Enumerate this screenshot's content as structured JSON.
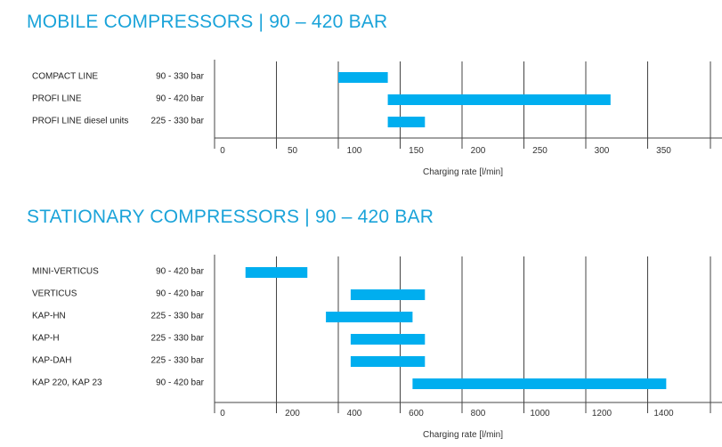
{
  "accent_color": "#1aa3d9",
  "bar_color": "#00aeef",
  "grid_color": "#444444",
  "chart_data": [
    {
      "type": "bar",
      "orientation": "horizontal-range",
      "title": "MOBILE COMPRESSORS | 90 – 420 BAR",
      "xlabel": "Charging rate [l/min]",
      "xlim": [
        0,
        400
      ],
      "ticks": [
        0,
        50,
        100,
        150,
        200,
        250,
        300,
        350
      ],
      "tick_labels": [
        "0",
        "50",
        "100",
        "150",
        "200",
        "250",
        "300",
        "350"
      ],
      "grid": true,
      "rows": [
        {
          "label": "COMPACT LINE",
          "pressure": "90 - 330 bar",
          "start": 100,
          "end": 140
        },
        {
          "label": "PROFI LINE",
          "pressure": "90 - 420 bar",
          "start": 140,
          "end": 320
        },
        {
          "label": "PROFI LINE diesel units",
          "pressure": "225 - 330 bar",
          "start": 140,
          "end": 170
        }
      ]
    },
    {
      "type": "bar",
      "orientation": "horizontal-range",
      "title": "STATIONARY COMPRESSORS | 90 – 420 BAR",
      "xlabel": "Charging rate [l/min]",
      "xlim": [
        0,
        1600
      ],
      "ticks": [
        0,
        200,
        400,
        600,
        800,
        1000,
        1200,
        1400
      ],
      "tick_labels": [
        "0",
        "200",
        "400",
        "600",
        "800",
        "1000",
        "1200",
        "1400"
      ],
      "grid": true,
      "rows": [
        {
          "label": "MINI-VERTICUS",
          "pressure": "90 - 420 bar",
          "start": 100,
          "end": 300
        },
        {
          "label": "VERTICUS",
          "pressure": "90 - 420 bar",
          "start": 440,
          "end": 680
        },
        {
          "label": "KAP-HN",
          "pressure": "225 - 330 bar",
          "start": 360,
          "end": 640
        },
        {
          "label": "KAP-H",
          "pressure": "225 - 330 bar",
          "start": 440,
          "end": 680
        },
        {
          "label": "KAP-DAH",
          "pressure": "225 - 330 bar",
          "start": 440,
          "end": 680
        },
        {
          "label": "KAP 220, KAP 23",
          "pressure": "90 - 420 bar",
          "start": 640,
          "end": 1460
        }
      ]
    }
  ]
}
